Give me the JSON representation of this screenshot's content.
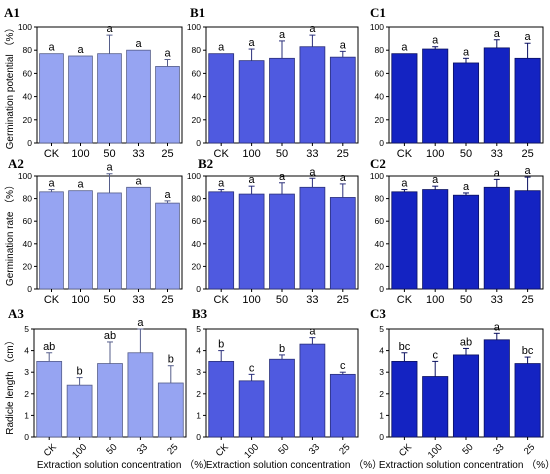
{
  "colors": {
    "A": {
      "fill": "#96A4F2",
      "stroke": "#555d8a"
    },
    "B": {
      "fill": "#4F5AE0",
      "stroke": "#2a2f7a"
    },
    "C": {
      "fill": "#1423C2",
      "stroke": "#0a1060"
    },
    "axis": "#000000"
  },
  "chart_data": [
    {
      "panel": "A1",
      "type": "bar",
      "categories": [
        "CK",
        "100",
        "50",
        "33",
        "25"
      ],
      "values": [
        77,
        75,
        77,
        80,
        66
      ],
      "errors": [
        0,
        0,
        16,
        0,
        6
      ],
      "letters": [
        "a",
        "a",
        "a",
        "a",
        "a"
      ],
      "ylabel": "Germination potential （%）",
      "xlabel": "",
      "ylim": [
        0,
        100
      ],
      "yticks": [
        0,
        20,
        40,
        60,
        80,
        100
      ]
    },
    {
      "panel": "B1",
      "type": "bar",
      "categories": [
        "CK",
        "100",
        "50",
        "33",
        "25"
      ],
      "values": [
        77,
        71,
        73,
        83,
        74
      ],
      "errors": [
        0,
        10,
        15,
        10,
        5
      ],
      "letters": [
        "a",
        "a",
        "a",
        "a",
        "a"
      ],
      "ylabel": "",
      "xlabel": "",
      "ylim": [
        0,
        100
      ],
      "yticks": [
        0,
        20,
        40,
        60,
        80,
        100
      ]
    },
    {
      "panel": "C1",
      "type": "bar",
      "categories": [
        "CK",
        "100",
        "50",
        "33",
        "25"
      ],
      "values": [
        77,
        81,
        69,
        82,
        73
      ],
      "errors": [
        0,
        2,
        4,
        7,
        13
      ],
      "letters": [
        "a",
        "a",
        "a",
        "a",
        "a"
      ],
      "ylabel": "",
      "xlabel": "",
      "ylim": [
        0,
        100
      ],
      "yticks": [
        0,
        20,
        40,
        60,
        80,
        100
      ]
    },
    {
      "panel": "A2",
      "type": "bar",
      "categories": [
        "CK",
        "100",
        "50",
        "33",
        "25"
      ],
      "values": [
        86,
        87,
        85,
        90,
        76
      ],
      "errors": [
        2,
        0,
        17,
        0,
        2
      ],
      "letters": [
        "a",
        "a",
        "a",
        "a",
        "a"
      ],
      "ylabel": "Germination rate （%）",
      "xlabel": "",
      "ylim": [
        0,
        100
      ],
      "yticks": [
        0,
        20,
        40,
        60,
        80,
        100
      ]
    },
    {
      "panel": "B2",
      "type": "bar",
      "categories": [
        "CK",
        "100",
        "50",
        "33",
        "25"
      ],
      "values": [
        86,
        84,
        84,
        90,
        81
      ],
      "errors": [
        2,
        7,
        10,
        8,
        12
      ],
      "letters": [
        "a",
        "a",
        "a",
        "a",
        "a"
      ],
      "ylabel": "",
      "xlabel": "",
      "ylim": [
        0,
        100
      ],
      "yticks": [
        0,
        20,
        40,
        60,
        80,
        100
      ]
    },
    {
      "panel": "C2",
      "type": "bar",
      "categories": [
        "CK",
        "100",
        "50",
        "33",
        "25"
      ],
      "values": [
        86,
        88,
        83,
        90,
        87
      ],
      "errors": [
        2,
        3,
        2,
        7,
        12
      ],
      "letters": [
        "a",
        "a",
        "a",
        "a",
        "a"
      ],
      "ylabel": "",
      "xlabel": "",
      "ylim": [
        0,
        100
      ],
      "yticks": [
        0,
        20,
        40,
        60,
        80,
        100
      ]
    },
    {
      "panel": "A3",
      "type": "bar",
      "categories": [
        "CK",
        "100",
        "50",
        "33",
        "25"
      ],
      "values": [
        3.5,
        2.4,
        3.4,
        3.9,
        2.5
      ],
      "errors": [
        0.4,
        0.35,
        1.0,
        1.1,
        0.8
      ],
      "letters": [
        "ab",
        "b",
        "ab",
        "a",
        "b"
      ],
      "ylabel": "Radicle length （cm）",
      "xlabel": "Extraction solution concentration （%）",
      "ylim": [
        0,
        5
      ],
      "yticks": [
        0,
        1,
        2,
        3,
        4,
        5
      ]
    },
    {
      "panel": "B3",
      "type": "bar",
      "categories": [
        "CK",
        "100",
        "50",
        "33",
        "25"
      ],
      "values": [
        3.5,
        2.6,
        3.6,
        4.3,
        2.9
      ],
      "errors": [
        0.5,
        0.3,
        0.2,
        0.3,
        0.1
      ],
      "letters": [
        "b",
        "c",
        "b",
        "a",
        "c"
      ],
      "ylabel": "",
      "xlabel": "Extraction solution concentration （%）",
      "ylim": [
        0,
        5
      ],
      "yticks": [
        0,
        1,
        2,
        3,
        4,
        5
      ]
    },
    {
      "panel": "C3",
      "type": "bar",
      "categories": [
        "CK",
        "100",
        "50",
        "33",
        "25"
      ],
      "values": [
        3.5,
        2.8,
        3.8,
        4.5,
        3.4
      ],
      "errors": [
        0.4,
        0.7,
        0.3,
        0.3,
        0.3
      ],
      "letters": [
        "bc",
        "c",
        "ab",
        "a",
        "bc"
      ],
      "ylabel": "",
      "xlabel": "Extraction solution concentration （%）",
      "ylim": [
        0,
        5
      ],
      "yticks": [
        0,
        1,
        2,
        3,
        4,
        5
      ]
    }
  ]
}
